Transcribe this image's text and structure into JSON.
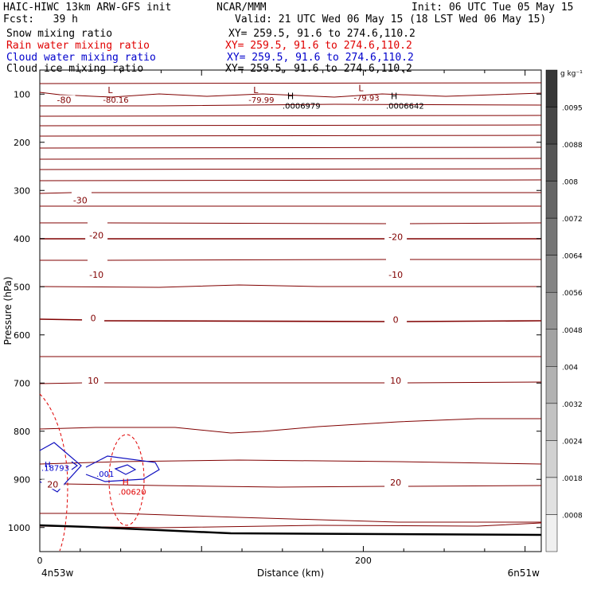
{
  "header": {
    "title": "HAIC-HIWC 13km ARW-GFS init",
    "fcst": "Fcst:   39 h",
    "org": "NCAR/MMM",
    "init": "Init: 06 UTC Tue 05 May 15",
    "valid": "Valid: 21 UTC Wed 06 May 15 (18 LST Wed 06 May 15)"
  },
  "fields": [
    {
      "name": "Snow mixing ratio",
      "xy": "XY= 259.5, 91.6 to 274.6,110.2",
      "color": "#000000"
    },
    {
      "name": "Rain water mixing ratio",
      "xy": "XY= 259.5, 91.6 to 274.6,110.2",
      "color": "#e00000"
    },
    {
      "name": "Cloud water mixing ratio",
      "xy": "XY= 259.5, 91.6 to 274.6,110.2",
      "color": "#0000cc"
    },
    {
      "name": "Cloud ice mixing ratio",
      "xy": "XY= 259.5, 91.6 to 274.6,110.2",
      "color": "#000000"
    }
  ],
  "chart_data": {
    "type": "cross-section",
    "ylabel": "Pressure (hPa)",
    "xlabel": "Distance (km)",
    "x_ticks": [
      {
        "v": 0,
        "label": "0"
      },
      {
        "v": 200,
        "label": "200"
      }
    ],
    "x_range": [
      0,
      310
    ],
    "y_ticks": [
      100,
      200,
      300,
      400,
      500,
      600,
      700,
      800,
      900,
      1000
    ],
    "y_range": [
      50,
      1050
    ],
    "left_end_label": "4n53w",
    "right_end_label": "6n51w",
    "temp_labels": [
      {
        "x": 15,
        "p": 112,
        "t": "-80"
      },
      {
        "x": 25,
        "p": 320,
        "t": "-30"
      },
      {
        "x": 35,
        "p": 393,
        "t": "-20"
      },
      {
        "x": 220,
        "p": 396,
        "t": "-20"
      },
      {
        "x": 35,
        "p": 475,
        "t": "-10"
      },
      {
        "x": 220,
        "p": 475,
        "t": "-10"
      },
      {
        "x": 33,
        "p": 565,
        "t": "0"
      },
      {
        "x": 220,
        "p": 568,
        "t": "0"
      },
      {
        "x": 33,
        "p": 695,
        "t": "10"
      },
      {
        "x": 220,
        "p": 695,
        "t": "10"
      },
      {
        "x": 8,
        "p": 910,
        "t": "20"
      },
      {
        "x": 220,
        "p": 906,
        "t": "20"
      }
    ],
    "extrema": [
      {
        "x": 42,
        "p": 98,
        "sym": "L",
        "val": "-80.16"
      },
      {
        "x": 132,
        "p": 98,
        "sym": "L",
        "val": "-79.99"
      },
      {
        "x": 197,
        "p": 94,
        "sym": "L",
        "val": "-79.93"
      },
      {
        "x": 153,
        "p": 110,
        "sym": "H",
        "val": ".0006979"
      },
      {
        "x": 217,
        "p": 110,
        "sym": "H",
        "val": ".0006642"
      }
    ],
    "rain_extremum": {
      "x": 51,
      "p": 912,
      "sym": "H",
      "val": ".00620"
    },
    "cloud_labels": [
      {
        "x": 3,
        "p": 875,
        "t": "H"
      },
      {
        "x": 1,
        "p": 882,
        "t": ".18793"
      },
      {
        "x": 35,
        "p": 895,
        "t": ".001"
      }
    ],
    "colorbar": {
      "unit": "g kg⁻¹",
      "labels": [
        ".0095",
        ".0088",
        ".008",
        ".0072",
        ".0064",
        ".0056",
        ".0048",
        ".004",
        ".0032",
        ".0024",
        ".0018",
        ".0008"
      ]
    }
  }
}
